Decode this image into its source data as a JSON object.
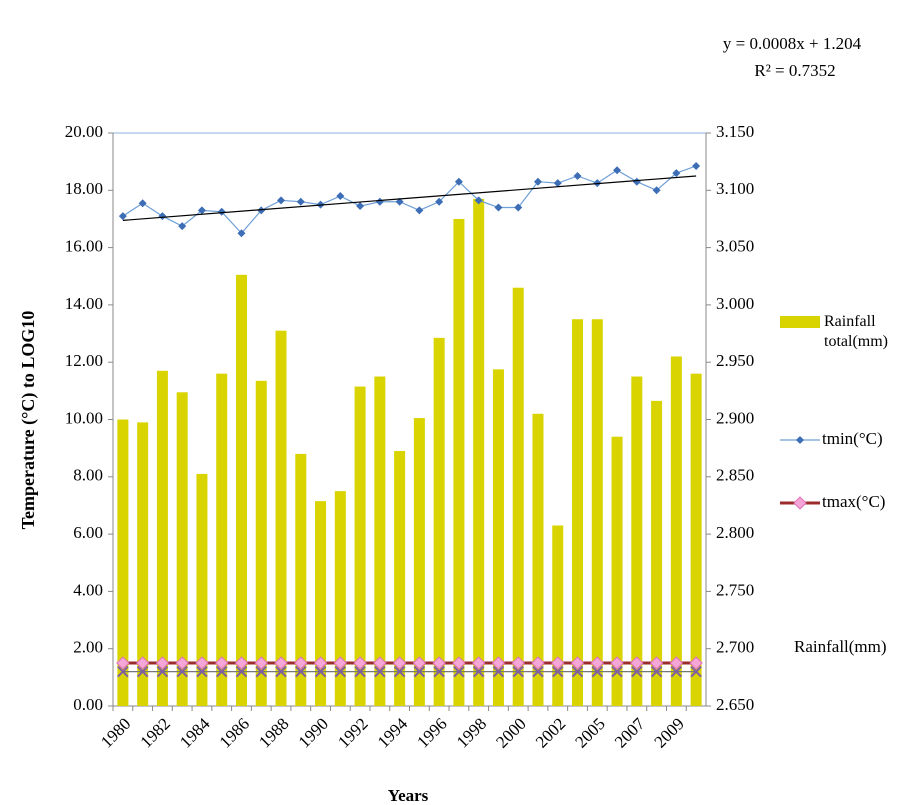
{
  "chart_data": {
    "type": "bar",
    "annotations": [
      "y = 0.0008x + 1.204",
      "R² = 0.7352"
    ],
    "ylabel": "Temperature (°C)  to LOG10",
    "xlabel": "Years",
    "categories": [
      "1980",
      null,
      "1982",
      null,
      "1984",
      null,
      "1986",
      null,
      "1988",
      null,
      "1990",
      null,
      "1992",
      null,
      "1994",
      null,
      "1996",
      null,
      "1998",
      null,
      "2000",
      null,
      "2002",
      null,
      "2005",
      null,
      "2007",
      null,
      "2009",
      null
    ],
    "series": [
      {
        "name": "Rainfall total(mm)",
        "type": "bar",
        "color": "#d9d400",
        "values": [
          10.0,
          9.9,
          11.7,
          10.95,
          8.1,
          11.6,
          15.05,
          11.35,
          13.1,
          8.8,
          7.15,
          7.5,
          11.15,
          11.5,
          8.9,
          10.05,
          12.85,
          17.0,
          17.7,
          11.75,
          14.6,
          10.2,
          6.3,
          13.5,
          13.5,
          9.4,
          11.5,
          10.65,
          12.2,
          11.6
        ]
      },
      {
        "name": "tmin(°C)",
        "type": "line",
        "color": "#3c6db5",
        "values": [
          17.1,
          17.55,
          17.1,
          16.75,
          17.3,
          17.25,
          16.5,
          17.3,
          17.65,
          17.6,
          17.5,
          17.8,
          17.45,
          17.6,
          17.6,
          17.3,
          17.6,
          18.3,
          17.65,
          17.4,
          17.4,
          18.3,
          18.25,
          18.5,
          18.25,
          18.7,
          18.3,
          18.0,
          18.6,
          18.85
        ]
      },
      {
        "name": "tmax(°C)",
        "type": "line",
        "color": "#9b2c2c",
        "values": [
          1.5,
          1.5,
          1.5,
          1.5,
          1.5,
          1.5,
          1.5,
          1.5,
          1.5,
          1.5,
          1.5,
          1.5,
          1.5,
          1.5,
          1.5,
          1.5,
          1.5,
          1.5,
          1.5,
          1.5,
          1.5,
          1.5,
          1.5,
          1.5,
          1.5,
          1.5,
          1.5,
          1.5,
          1.5,
          1.5
        ]
      },
      {
        "name": "Rainfall(mm)",
        "type": "line",
        "axis": "y2",
        "color": "#7f5fa0",
        "values": [
          2.68,
          2.68,
          2.68,
          2.68,
          2.68,
          2.68,
          2.68,
          2.68,
          2.68,
          2.68,
          2.68,
          2.68,
          2.68,
          2.68,
          2.68,
          2.68,
          2.68,
          2.68,
          2.68,
          2.68,
          2.68,
          2.68,
          2.68,
          2.68,
          2.68,
          2.68,
          2.68,
          2.68,
          2.68,
          2.68
        ]
      }
    ],
    "trendline": {
      "start": 16.95,
      "end": 18.5
    },
    "ylim": [
      0,
      20
    ],
    "yticks": [
      {
        "value": 0,
        "label": "0.00"
      },
      {
        "value": 2,
        "label": "2.00"
      },
      {
        "value": 4,
        "label": "4.00"
      },
      {
        "value": 6,
        "label": "6.00"
      },
      {
        "value": 8,
        "label": "8.00"
      },
      {
        "value": 10,
        "label": "10.00"
      },
      {
        "value": 12,
        "label": "12.00"
      },
      {
        "value": 14,
        "label": "14.00"
      },
      {
        "value": 16,
        "label": "16.00"
      },
      {
        "value": 18,
        "label": "18.00"
      },
      {
        "value": 20,
        "label": "20.00"
      }
    ],
    "y2lim": [
      2.65,
      3.15
    ],
    "y2ticks": [
      {
        "value": 2.65,
        "label": "2.650"
      },
      {
        "value": 2.7,
        "label": "2.700"
      },
      {
        "value": 2.75,
        "label": "2.750"
      },
      {
        "value": 2.8,
        "label": "2.800"
      },
      {
        "value": 2.85,
        "label": "2.850"
      },
      {
        "value": 2.9,
        "label": "2.900"
      },
      {
        "value": 2.95,
        "label": "2.950"
      },
      {
        "value": 3.0,
        "label": "3.000"
      },
      {
        "value": 3.05,
        "label": "3.050"
      },
      {
        "value": 3.1,
        "label": "3.100"
      },
      {
        "value": 3.15,
        "label": "3.150"
      }
    ],
    "legend": "right"
  }
}
